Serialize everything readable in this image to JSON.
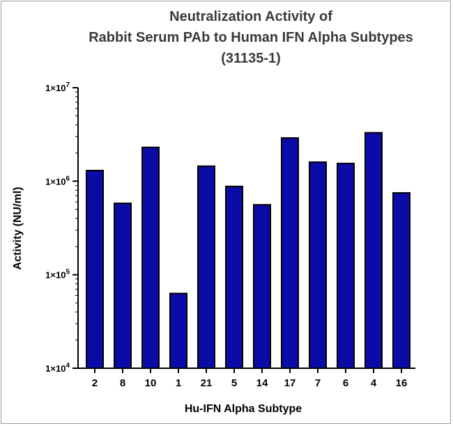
{
  "chart_data": {
    "type": "bar",
    "title_lines": [
      "Neutralization Activity of",
      "Rabbit Serum PAb to Human IFN Alpha Subtypes",
      "(31135-1)"
    ],
    "xlabel": "Hu-IFN Alpha Subtype",
    "ylabel": "Activity (NU/ml)",
    "yscale": "log",
    "ylim": [
      10000,
      10000000
    ],
    "yticks": [
      {
        "value": 10000,
        "mantissa": "1",
        "base": "10",
        "exp": "4"
      },
      {
        "value": 100000,
        "mantissa": "1",
        "base": "10",
        "exp": "5"
      },
      {
        "value": 1000000,
        "mantissa": "1",
        "base": "10",
        "exp": "6"
      },
      {
        "value": 10000000,
        "mantissa": "1",
        "base": "10",
        "exp": "7"
      }
    ],
    "categories": [
      "2",
      "8",
      "10",
      "1",
      "21",
      "5",
      "14",
      "17",
      "7",
      "6",
      "4",
      "16"
    ],
    "values": [
      1300000,
      580000,
      2300000,
      63000,
      1450000,
      880000,
      560000,
      2900000,
      1600000,
      1550000,
      3300000,
      750000
    ],
    "bar_color": "#0b0ba8",
    "bar_edge_color": "#000000",
    "grid": false,
    "legend": "none"
  }
}
